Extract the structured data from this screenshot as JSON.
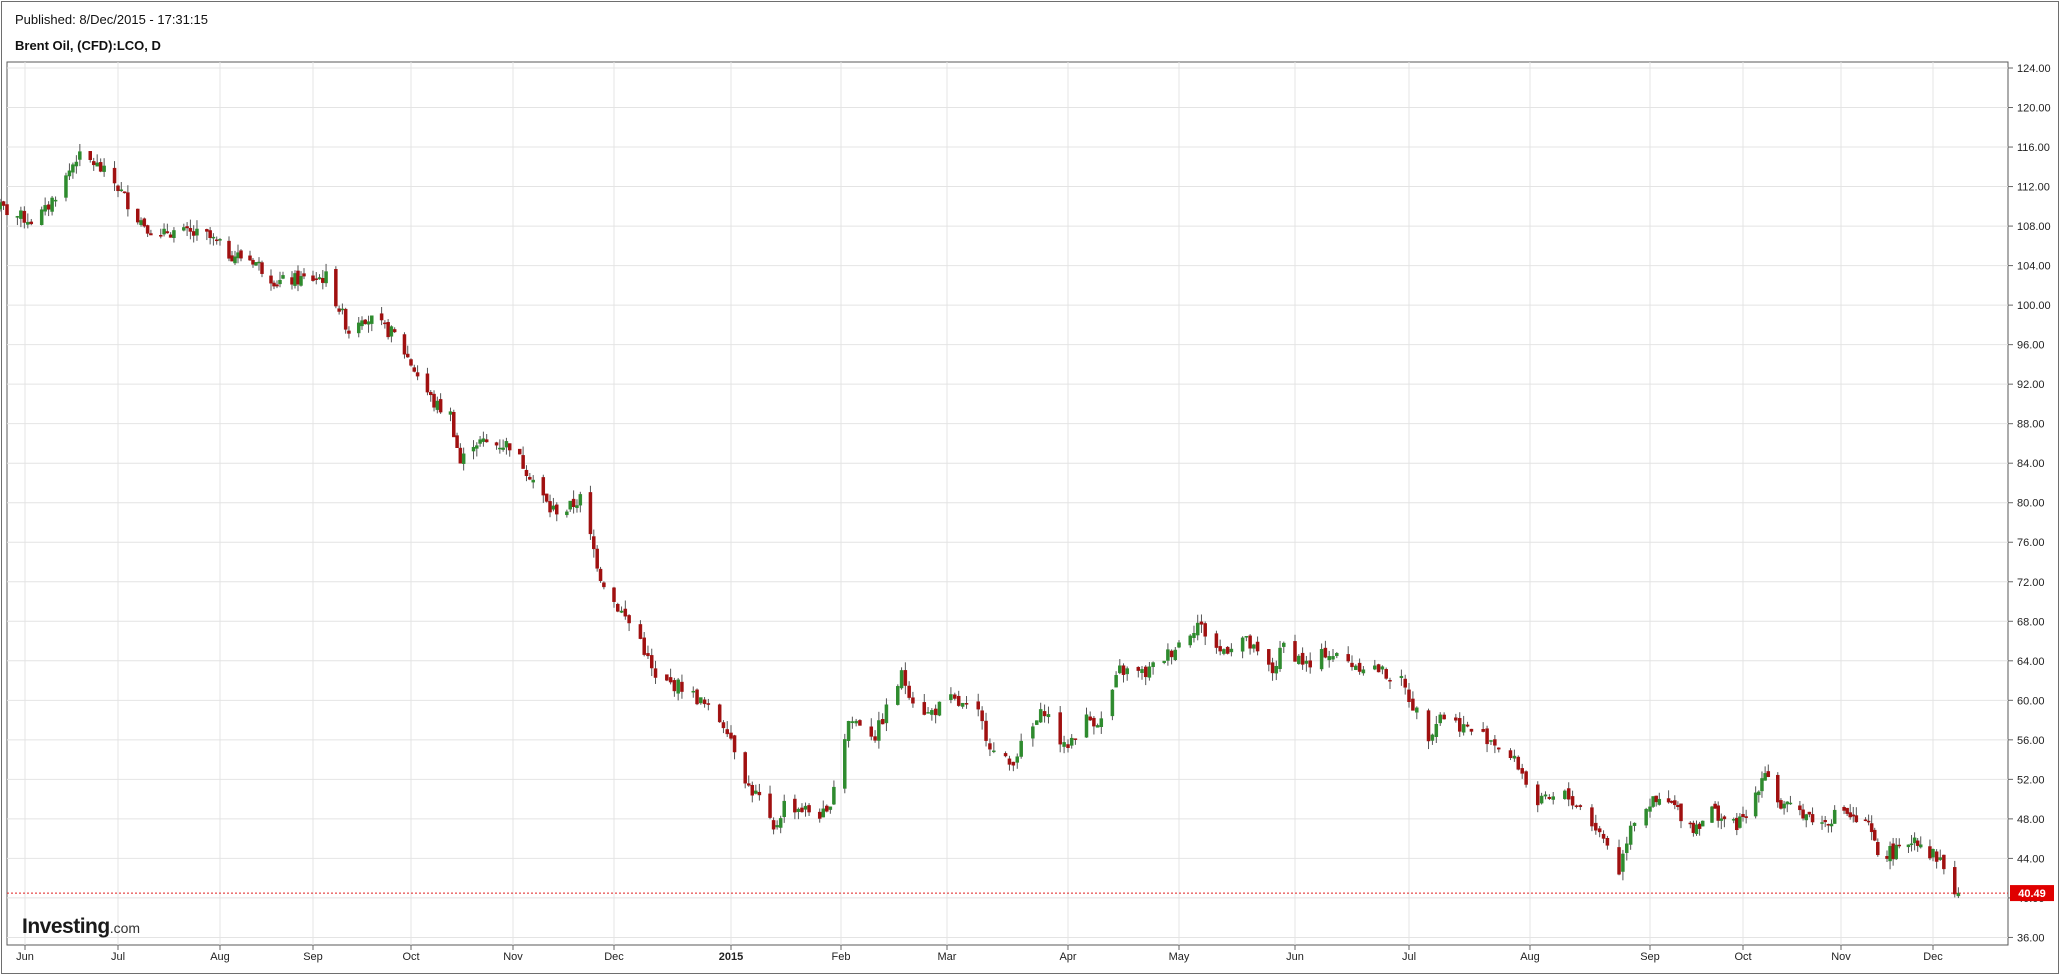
{
  "header": {
    "published": "Published: 8/Dec/2015 - 17:31:15",
    "symbol": "Brent Oil, (CFD):LCO, D"
  },
  "logo": {
    "name": "Investing",
    "suffix": ".com"
  },
  "colors": {
    "up": "#2e8b2e",
    "down": "#a01010",
    "grid": "#e4e4e4",
    "price_line": "#e02020",
    "price_label_bg": "#e00000"
  },
  "chart_data": {
    "type": "candlestick",
    "title": "Brent Oil, (CFD):LCO, D",
    "ylim": [
      34,
      125
    ],
    "y_ticks": [
      "124.00",
      "120.00",
      "116.00",
      "112.00",
      "108.00",
      "104.00",
      "100.00",
      "96.00",
      "92.00",
      "88.00",
      "84.00",
      "80.00",
      "76.00",
      "72.00",
      "68.00",
      "64.00",
      "60.00",
      "56.00",
      "52.00",
      "48.00",
      "44.00",
      "40.00",
      "36.00"
    ],
    "x_labels": [
      "Jun",
      "Jul",
      "Aug",
      "Sep",
      "Oct",
      "Nov",
      "Dec",
      "2015",
      "Feb",
      "Mar",
      "Apr",
      "May",
      "Jun",
      "Jul",
      "Aug",
      "Sep",
      "Oct",
      "Nov",
      "Dec"
    ],
    "x_label_bold": [
      false,
      false,
      false,
      false,
      false,
      false,
      false,
      true,
      false,
      false,
      false,
      false,
      false,
      false,
      false,
      false,
      false,
      false,
      false
    ],
    "last_price": 40.49,
    "last_price_label": "40.49",
    "close_anchors": [
      [
        "2014-05-26",
        110.2
      ],
      [
        "2014-06-02",
        109.0
      ],
      [
        "2014-06-06",
        108.6
      ],
      [
        "2014-06-10",
        109.5
      ],
      [
        "2014-06-16",
        112.9
      ],
      [
        "2014-06-19",
        115.0
      ],
      [
        "2014-06-24",
        114.4
      ],
      [
        "2014-06-30",
        112.4
      ],
      [
        "2014-07-07",
        108.9
      ],
      [
        "2014-07-14",
        106.7
      ],
      [
        "2014-07-16",
        107.5
      ],
      [
        "2014-07-28",
        107.0
      ],
      [
        "2014-08-04",
        105.2
      ],
      [
        "2014-08-12",
        104.6
      ],
      [
        "2014-08-20",
        102.3
      ],
      [
        "2014-08-27",
        102.6
      ],
      [
        "2014-09-05",
        102.8
      ],
      [
        "2014-09-12",
        97.4
      ],
      [
        "2014-09-16",
        99.0
      ],
      [
        "2014-09-26",
        97.0
      ],
      [
        "2014-09-30",
        94.7
      ],
      [
        "2014-10-08",
        90.0
      ],
      [
        "2014-10-13",
        88.9
      ],
      [
        "2014-10-16",
        84.0
      ],
      [
        "2014-10-20",
        86.2
      ],
      [
        "2014-10-27",
        85.9
      ],
      [
        "2014-10-31",
        85.9
      ],
      [
        "2014-11-06",
        82.9
      ],
      [
        "2014-11-12",
        79.3
      ],
      [
        "2014-11-17",
        79.3
      ],
      [
        "2014-11-21",
        80.4
      ],
      [
        "2014-11-27",
        72.6
      ],
      [
        "2014-12-01",
        70.0
      ],
      [
        "2014-12-08",
        66.2
      ],
      [
        "2014-12-12",
        62.0
      ],
      [
        "2014-12-19",
        61.4
      ],
      [
        "2014-12-23",
        60.2
      ],
      [
        "2014-12-31",
        57.3
      ],
      [
        "2015-01-06",
        51.2
      ],
      [
        "2015-01-09",
        50.1
      ],
      [
        "2015-01-13",
        46.6
      ],
      [
        "2015-01-16",
        49.5
      ],
      [
        "2015-01-23",
        48.8
      ],
      [
        "2015-01-28",
        48.3
      ],
      [
        "2015-02-03",
        57.9
      ],
      [
        "2015-02-06",
        57.8
      ],
      [
        "2015-02-10",
        56.4
      ],
      [
        "2015-02-17",
        62.5
      ],
      [
        "2015-02-20",
        60.2
      ],
      [
        "2015-02-24",
        58.6
      ],
      [
        "2015-03-02",
        60.0
      ],
      [
        "2015-03-09",
        58.5
      ],
      [
        "2015-03-13",
        54.7
      ],
      [
        "2015-03-17",
        53.5
      ],
      [
        "2015-03-20",
        55.3
      ],
      [
        "2015-03-26",
        59.1
      ],
      [
        "2015-03-31",
        55.1
      ],
      [
        "2015-04-06",
        58.1
      ],
      [
        "2015-04-10",
        57.9
      ],
      [
        "2015-04-15",
        63.0
      ],
      [
        "2015-04-22",
        62.7
      ],
      [
        "2015-04-29",
        65.0
      ],
      [
        "2015-05-06",
        67.8
      ],
      [
        "2015-05-12",
        64.9
      ],
      [
        "2015-05-18",
        66.3
      ],
      [
        "2015-05-26",
        62.9
      ],
      [
        "2015-05-29",
        65.6
      ],
      [
        "2015-06-05",
        63.3
      ],
      [
        "2015-06-09",
        64.9
      ],
      [
        "2015-06-16",
        63.7
      ],
      [
        "2015-06-22",
        63.3
      ],
      [
        "2015-06-29",
        61.8
      ],
      [
        "2015-07-06",
        56.5
      ],
      [
        "2015-07-09",
        58.6
      ],
      [
        "2015-07-16",
        57.1
      ],
      [
        "2015-07-22",
        56.1
      ],
      [
        "2015-07-29",
        53.4
      ],
      [
        "2015-08-03",
        49.5
      ],
      [
        "2015-08-10",
        50.4
      ],
      [
        "2015-08-14",
        49.2
      ],
      [
        "2015-08-21",
        45.5
      ],
      [
        "2015-08-24",
        42.7
      ],
      [
        "2015-08-27",
        47.6
      ],
      [
        "2015-09-01",
        49.6
      ],
      [
        "2015-09-08",
        49.5
      ],
      [
        "2015-09-15",
        47.1
      ],
      [
        "2015-09-21",
        48.9
      ],
      [
        "2015-09-28",
        47.3
      ],
      [
        "2015-10-02",
        48.1
      ],
      [
        "2015-10-08",
        53.1
      ],
      [
        "2015-10-13",
        49.2
      ],
      [
        "2015-10-20",
        48.7
      ],
      [
        "2015-10-26",
        47.5
      ],
      [
        "2015-11-02",
        49.0
      ],
      [
        "2015-11-05",
        47.9
      ],
      [
        "2015-11-10",
        47.2
      ],
      [
        "2015-11-13",
        44.5
      ],
      [
        "2015-11-20",
        44.7
      ],
      [
        "2015-11-25",
        46.2
      ],
      [
        "2015-11-30",
        44.6
      ],
      [
        "2015-12-03",
        43.9
      ],
      [
        "2015-12-04",
        43.0
      ],
      [
        "2015-12-07",
        40.7
      ],
      [
        "2015-12-08",
        40.49
      ]
    ]
  }
}
